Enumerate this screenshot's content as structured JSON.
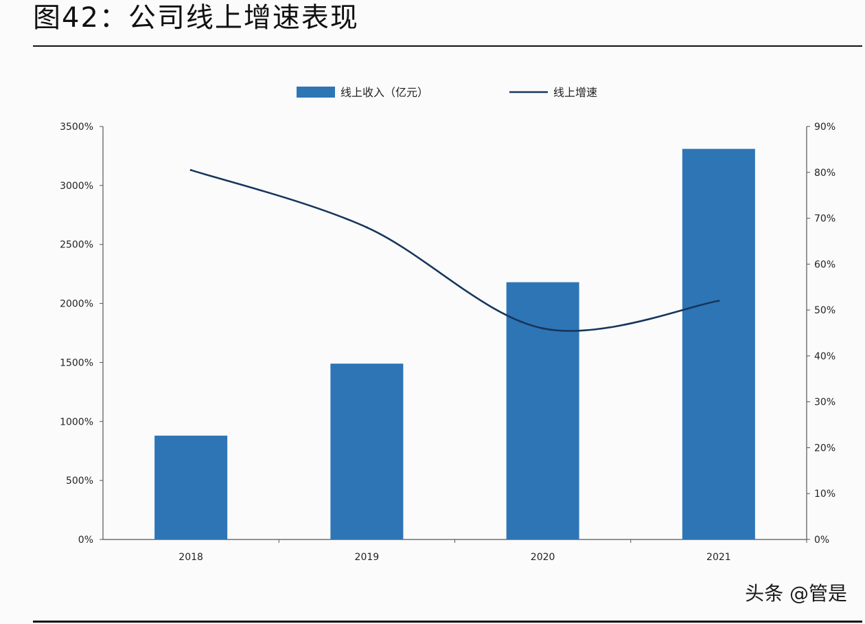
{
  "page": {
    "title": "图42：公司线上增速表现",
    "watermark": "头条 @管是"
  },
  "colors": {
    "bar": "#2e75b6",
    "line": "#16365c",
    "axis": "#555555",
    "text": "#222222"
  },
  "chart_data": {
    "type": "bar",
    "title": "",
    "xlabel": "",
    "categories": [
      "2018",
      "2019",
      "2020",
      "2021"
    ],
    "legend_placement": "top",
    "grid": false,
    "series": [
      {
        "name": "线上收入（亿元）",
        "type": "bar",
        "axis": "left",
        "values": [
          880,
          1490,
          2180,
          3310
        ]
      },
      {
        "name": "线上增速",
        "type": "line",
        "axis": "right",
        "values": [
          80.5,
          68,
          46,
          52
        ]
      }
    ],
    "y_left": {
      "min": 0,
      "max": 3500,
      "step": 500,
      "tick_labels": [
        "0%",
        "500%",
        "1000%",
        "1500%",
        "2000%",
        "2500%",
        "3000%",
        "3500%"
      ]
    },
    "y_right": {
      "min": 0,
      "max": 90,
      "step": 10,
      "tick_labels": [
        "0%",
        "10%",
        "20%",
        "30%",
        "40%",
        "50%",
        "60%",
        "70%",
        "80%",
        "90%"
      ]
    }
  }
}
